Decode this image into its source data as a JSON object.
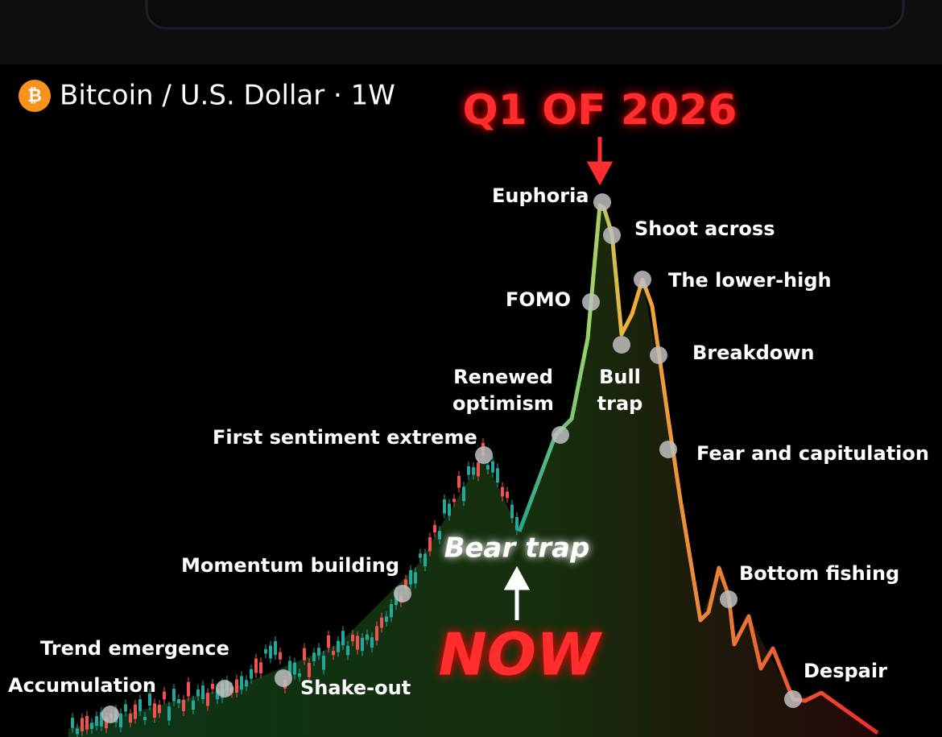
{
  "header": {
    "logo": "₿",
    "title": "Bitcoin / U.S. Dollar · 1W"
  },
  "callouts": {
    "top": "Q1 OF 2026",
    "bear_trap": "Bear trap",
    "now": "NOW"
  },
  "phases": [
    {
      "label": "Accumulation"
    },
    {
      "label": "Trend emergence"
    },
    {
      "label": "Shake-out"
    },
    {
      "label": "Momentum building"
    },
    {
      "label": "First sentiment extreme"
    },
    {
      "label": "Renewed optimism"
    },
    {
      "label": "FOMO"
    },
    {
      "label": "Euphoria"
    },
    {
      "label": "Shoot across"
    },
    {
      "label": "The lower-high"
    },
    {
      "label": "Bull trap"
    },
    {
      "label": "Breakdown"
    },
    {
      "label": "Fear and capitulation"
    },
    {
      "label": "Bottom fishing"
    },
    {
      "label": "Despair"
    }
  ]
}
